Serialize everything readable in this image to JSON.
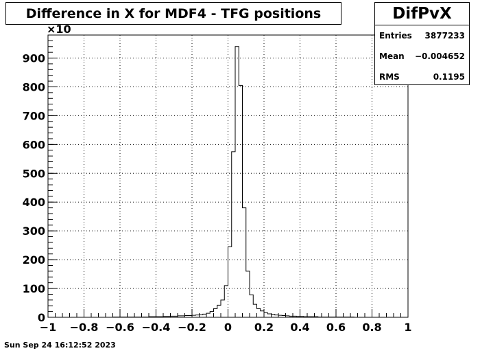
{
  "chart_data": {
    "type": "histogram",
    "title": "Difference in X for MDF4 - TFG positions",
    "xlim": [
      -1,
      1
    ],
    "ylim": [
      0,
      980
    ],
    "y_multiplier_label": "×10",
    "x_ticks": [
      -1,
      -0.8,
      -0.6,
      -0.4,
      -0.2,
      0,
      0.2,
      0.4,
      0.6,
      0.8,
      1
    ],
    "x_tick_labels": [
      "−1",
      "−0.8",
      "−0.6",
      "−0.4",
      "−0.2",
      "0",
      "0.2",
      "0.4",
      "0.6",
      "0.8",
      "1"
    ],
    "y_ticks": [
      0,
      100,
      200,
      300,
      400,
      500,
      600,
      700,
      800,
      900
    ],
    "y_tick_labels": [
      "0",
      "100",
      "200",
      "300",
      "400",
      "500",
      "600",
      "700",
      "800",
      "900"
    ],
    "grid": true,
    "bin_width": 0.02,
    "bins_start": -1,
    "values": [
      0,
      0,
      0,
      0,
      0,
      0,
      0,
      0,
      0,
      0,
      0,
      0,
      0,
      0,
      0,
      0,
      0,
      0,
      1,
      1,
      1,
      1,
      1,
      1,
      1,
      1,
      1,
      1,
      2,
      2,
      2,
      2,
      3,
      3,
      4,
      4,
      5,
      5,
      6,
      6,
      7,
      8,
      9,
      11,
      14,
      20,
      30,
      42,
      60,
      110,
      245,
      575,
      940,
      805,
      380,
      160,
      78,
      45,
      30,
      22,
      16,
      12,
      10,
      8,
      7,
      6,
      5,
      4,
      4,
      3,
      3,
      2,
      2,
      2,
      2,
      1,
      1,
      1,
      1,
      1,
      1,
      1,
      1,
      1,
      1,
      0,
      0,
      0,
      0,
      0,
      0,
      0,
      0,
      0,
      0,
      0,
      0,
      0,
      0,
      0
    ],
    "line_color": "#000000"
  },
  "stats": {
    "name": "DifPvX",
    "entries_label": "Entries",
    "entries_value": "3877233",
    "mean_label": "Mean",
    "mean_value": "−0.004652",
    "rms_label": "RMS",
    "rms_value": "0.1195"
  },
  "datestamp": "Sun Sep 24 16:12:52 2023"
}
